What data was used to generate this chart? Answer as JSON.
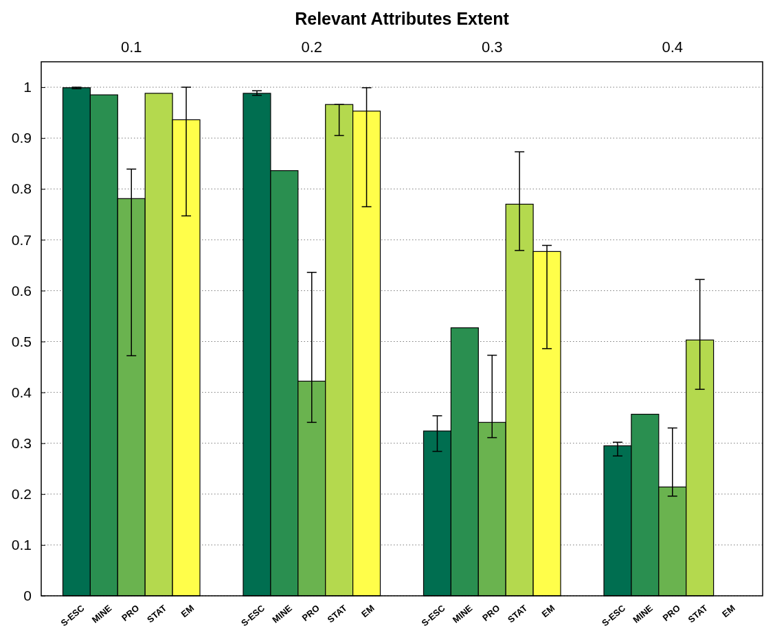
{
  "chart_data": {
    "type": "bar",
    "title": "Relevant Attributes Extent",
    "categories": [
      "0.1",
      "0.2",
      "0.3",
      "0.4"
    ],
    "series": [
      {
        "name": "S-ESC",
        "color": "#006e50",
        "values": [
          0.999,
          0.988,
          0.324,
          0.295
        ],
        "errors": [
          [
            0.997,
            1.0
          ],
          [
            0.984,
            0.993
          ],
          [
            0.284,
            0.354
          ],
          [
            0.275,
            0.302
          ]
        ]
      },
      {
        "name": "MINE",
        "color": "#2a8f50",
        "values": [
          0.985,
          0.836,
          0.527,
          0.357
        ]
      },
      {
        "name": "PRO",
        "color": "#6ab34f",
        "values": [
          0.781,
          0.422,
          0.341,
          0.214
        ],
        "errors": [
          [
            0.472,
            0.839
          ],
          [
            0.341,
            0.636
          ],
          [
            0.311,
            0.473
          ],
          [
            0.196,
            0.33
          ]
        ]
      },
      {
        "name": "STAT",
        "color": "#b4d94e",
        "values": [
          0.988,
          0.966,
          0.77,
          0.503
        ],
        "errors": [
          null,
          [
            0.905,
            0.966
          ],
          [
            0.679,
            0.873
          ],
          [
            0.406,
            0.622
          ]
        ]
      },
      {
        "name": "EM",
        "color": "#fffe4a",
        "values": [
          0.936,
          0.953,
          0.677,
          null
        ],
        "errors": [
          [
            0.747,
            1.0
          ],
          [
            0.765,
            0.999
          ],
          [
            0.486,
            0.689
          ],
          null
        ]
      }
    ],
    "ylim": [
      0,
      1.05
    ],
    "yticks": [
      0,
      0.1,
      0.2,
      0.3,
      0.4,
      0.5,
      0.6,
      0.7,
      0.8,
      0.9,
      1
    ],
    "grid": "y"
  }
}
